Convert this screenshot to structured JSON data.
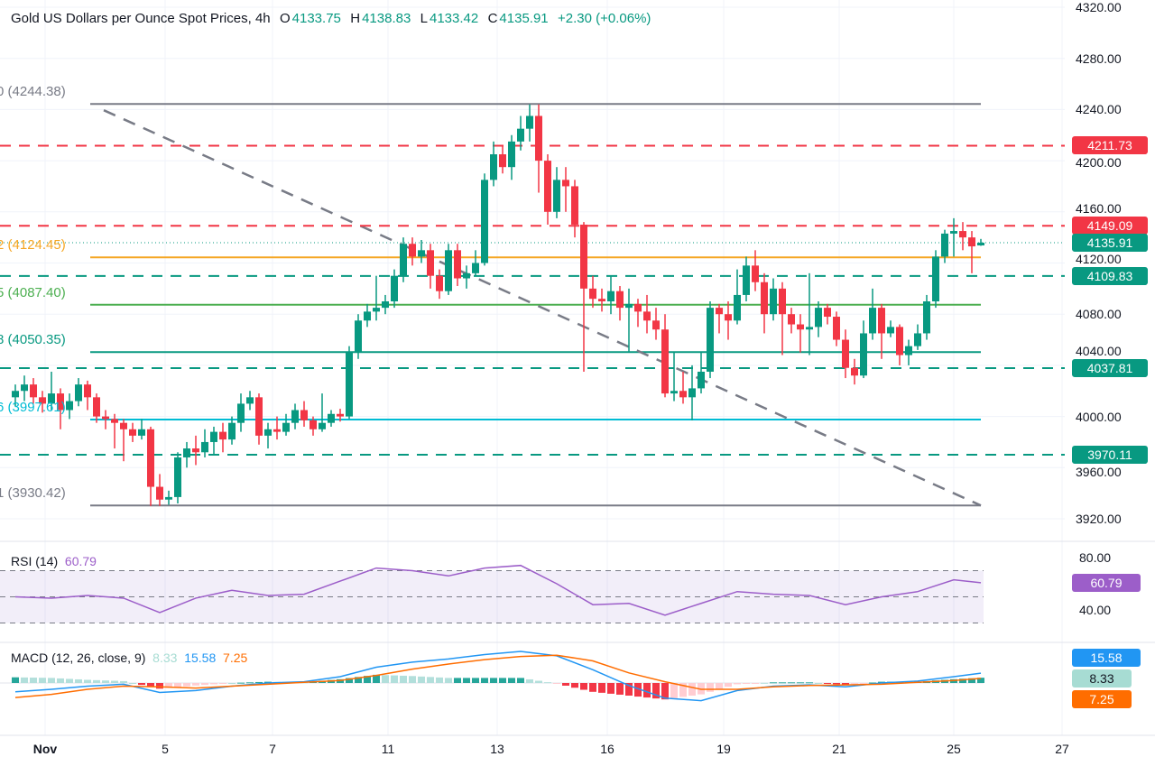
{
  "header": {
    "title": "Gold US Dollars per Ounce Spot Prices, 4h",
    "o_label": "O",
    "open": "4133.75",
    "h_label": "H",
    "high": "4138.83",
    "l_label": "L",
    "low": "4133.42",
    "c_label": "C",
    "close": "4135.91",
    "change": "+2.30 (+0.06%)"
  },
  "colors": {
    "up": "#089981",
    "down": "#f23645",
    "rsi": "#9c5ec9",
    "macd": "#2196f3",
    "signal": "#ff6d00",
    "hist_up_strong": "#26a69a",
    "hist_up_weak": "#b2dfdb",
    "hist_down_strong": "#f23645",
    "hist_down_weak": "#ffcdd2"
  },
  "price_axis": [
    "4320.00",
    "4280.00",
    "4240.00",
    "4200.00",
    "4160.00",
    "4120.00",
    "4080.00",
    "4040.00",
    "4000.00",
    "3960.00",
    "3920.00"
  ],
  "time_axis": [
    "Nov",
    "5",
    "7",
    "11",
    "13",
    "16",
    "19",
    "21",
    "25",
    "27"
  ],
  "fib_labels": [
    {
      "text": "0 (4244.38)",
      "value": 4244.38,
      "color": "#787b86"
    },
    {
      "text": "2 (4124.45)",
      "value": 4124.45,
      "color": "#f5a623"
    },
    {
      "text": "5 (4087.40)",
      "value": 4087.4,
      "color": "#4caf50"
    },
    {
      "text": "8 (4050.35)",
      "value": 4050.35,
      "color": "#089981"
    },
    {
      "text": "6 (3997.61)",
      "value": 3997.61,
      "color": "#00bcd4"
    },
    {
      "text": "1 (3930.42)",
      "value": 3930.42,
      "color": "#787b86"
    }
  ],
  "levels": [
    {
      "label": "4211.73",
      "value": 4211.73,
      "color": "#f23645",
      "style": "dashed"
    },
    {
      "label": "4149.09",
      "value": 4149.09,
      "color": "#f23645",
      "style": "dashed"
    },
    {
      "label": "4135.91",
      "value": 4135.91,
      "color": "#089981",
      "style": "dotted"
    },
    {
      "label": "4109.83",
      "value": 4109.83,
      "color": "#089981",
      "style": "dashed"
    },
    {
      "label": "4037.81",
      "value": 4037.81,
      "color": "#089981",
      "style": "dashed"
    },
    {
      "label": "3970.11",
      "value": 3970.11,
      "color": "#089981",
      "style": "dashed"
    }
  ],
  "trendline": {
    "from": 4244.38,
    "to": 3930.42,
    "color": "#787b86",
    "style": "dashed"
  },
  "rsi": {
    "label": "RSI (14)",
    "value": "60.79",
    "axis": [
      "80.00",
      "40.00"
    ],
    "upper": 70,
    "middle": 50,
    "lower": 30,
    "series": [
      50,
      49,
      51,
      49,
      38,
      49,
      55,
      51,
      52,
      62,
      72,
      70,
      66,
      72,
      74,
      60,
      44,
      45,
      36,
      45,
      54,
      52,
      51,
      44,
      50,
      54,
      63,
      60.79
    ]
  },
  "macd": {
    "label": "MACD (12, 26, close, 9)",
    "histogram_value": "8.33",
    "macd_value": "15.58",
    "signal_value": "7.25",
    "macd_series": [
      -14,
      -10,
      -5,
      -2,
      -15,
      -12,
      -5,
      0,
      2,
      10,
      25,
      33,
      38,
      45,
      50,
      43,
      21,
      -4,
      -24,
      -28,
      -12,
      -5,
      -3,
      -6,
      0,
      3,
      10,
      15.58
    ],
    "signal_series": [
      -23,
      -18,
      -10,
      -5,
      -6,
      -8,
      -5,
      -2,
      1,
      4,
      12,
      22,
      30,
      37,
      42,
      44,
      35,
      16,
      2,
      -10,
      -10,
      -6,
      -4,
      -3,
      -2,
      1,
      4,
      7.25
    ]
  },
  "chart_data": {
    "type": "candlestick",
    "title": "Gold US Dollars per Ounce Spot Prices, 4h",
    "ylim": [
      3920,
      4320
    ],
    "grid": true,
    "ohlc": [
      [
        4015,
        4025,
        4008,
        4020
      ],
      [
        4020,
        4032,
        4012,
        4025
      ],
      [
        4025,
        4030,
        4010,
        4015
      ],
      [
        4015,
        4020,
        4003,
        4010
      ],
      [
        4010,
        4035,
        4005,
        4018
      ],
      [
        4018,
        4022,
        3990,
        4005
      ],
      [
        4005,
        4018,
        3998,
        4012
      ],
      [
        4012,
        4030,
        4008,
        4025
      ],
      [
        4025,
        4028,
        4005,
        4015
      ],
      [
        4015,
        4018,
        3995,
        4000
      ],
      [
        4000,
        4005,
        3990,
        3998
      ],
      [
        3998,
        4002,
        3975,
        3995
      ],
      [
        3995,
        3998,
        3965,
        3990
      ],
      [
        3990,
        3995,
        3980,
        3985
      ],
      [
        3985,
        3998,
        3982,
        3990
      ],
      [
        3990,
        3992,
        3930,
        3945
      ],
      [
        3945,
        3955,
        3930,
        3935
      ],
      [
        3935,
        3942,
        3931,
        3937
      ],
      [
        3937,
        3972,
        3932,
        3968
      ],
      [
        3968,
        3980,
        3960,
        3975
      ],
      [
        3975,
        3985,
        3962,
        3972
      ],
      [
        3972,
        3990,
        3968,
        3980
      ],
      [
        3980,
        3992,
        3970,
        3988
      ],
      [
        3988,
        3995,
        3972,
        3982
      ],
      [
        3982,
        4000,
        3978,
        3995
      ],
      [
        3995,
        4018,
        3988,
        4010
      ],
      [
        4010,
        4020,
        4005,
        4015
      ],
      [
        4015,
        4018,
        3978,
        3985
      ],
      [
        3985,
        3995,
        3975,
        3990
      ],
      [
        3990,
        4000,
        3982,
        3988
      ],
      [
        3988,
        4002,
        3985,
        3995
      ],
      [
        3995,
        4010,
        3990,
        4005
      ],
      [
        4005,
        4012,
        3992,
        3997
      ],
      [
        3997,
        4000,
        3985,
        3990
      ],
      [
        3990,
        4018,
        3988,
        3995
      ],
      [
        3995,
        4005,
        3992,
        4002
      ],
      [
        4002,
        4006,
        3996,
        4000
      ],
      [
        4000,
        4055,
        3998,
        4050
      ],
      [
        4050,
        4080,
        4045,
        4075
      ],
      [
        4075,
        4088,
        4070,
        4082
      ],
      [
        4082,
        4110,
        4075,
        4085
      ],
      [
        4085,
        4095,
        4080,
        4090
      ],
      [
        4090,
        4115,
        4085,
        4110
      ],
      [
        4110,
        4140,
        4105,
        4135
      ],
      [
        4135,
        4140,
        4118,
        4125
      ],
      [
        4125,
        4138,
        4120,
        4130
      ],
      [
        4130,
        4135,
        4100,
        4110
      ],
      [
        4110,
        4115,
        4092,
        4098
      ],
      [
        4098,
        4135,
        4095,
        4130
      ],
      [
        4130,
        4135,
        4102,
        4108
      ],
      [
        4108,
        4118,
        4100,
        4112
      ],
      [
        4112,
        4130,
        4110,
        4120
      ],
      [
        4120,
        4190,
        4118,
        4185
      ],
      [
        4185,
        4215,
        4180,
        4205
      ],
      [
        4205,
        4212,
        4190,
        4195
      ],
      [
        4195,
        4220,
        4185,
        4215
      ],
      [
        4215,
        4235,
        4208,
        4225
      ],
      [
        4225,
        4244,
        4215,
        4235
      ],
      [
        4235,
        4244,
        4175,
        4200
      ],
      [
        4200,
        4205,
        4150,
        4160
      ],
      [
        4160,
        4195,
        4155,
        4185
      ],
      [
        4185,
        4195,
        4160,
        4180
      ],
      [
        4180,
        4185,
        4140,
        4150
      ],
      [
        4150,
        4152,
        4035,
        4100
      ],
      [
        4100,
        4110,
        4085,
        4092
      ],
      [
        4092,
        4100,
        4082,
        4090
      ],
      [
        4090,
        4110,
        4080,
        4098
      ],
      [
        4098,
        4102,
        4075,
        4085
      ],
      [
        4085,
        4100,
        4050,
        4088
      ],
      [
        4088,
        4092,
        4070,
        4082
      ],
      [
        4082,
        4095,
        4065,
        4075
      ],
      [
        4075,
        4085,
        4060,
        4068
      ],
      [
        4068,
        4080,
        4015,
        4018
      ],
      [
        4018,
        4050,
        4012,
        4020
      ],
      [
        4020,
        4035,
        4010,
        4015
      ],
      [
        4015,
        4040,
        3997,
        4022
      ],
      [
        4022,
        4050,
        4018,
        4035
      ],
      [
        4035,
        4090,
        4030,
        4085
      ],
      [
        4085,
        4088,
        4065,
        4080
      ],
      [
        4080,
        4090,
        4060,
        4075
      ],
      [
        4075,
        4115,
        4072,
        4095
      ],
      [
        4095,
        4125,
        4090,
        4118
      ],
      [
        4118,
        4130,
        4098,
        4105
      ],
      [
        4105,
        4112,
        4065,
        4080
      ],
      [
        4080,
        4108,
        4075,
        4100
      ],
      [
        4100,
        4105,
        4048,
        4080
      ],
      [
        4080,
        4085,
        4065,
        4072
      ],
      [
        4072,
        4080,
        4050,
        4068
      ],
      [
        4068,
        4112,
        4048,
        4070
      ],
      [
        4070,
        4090,
        4062,
        4085
      ],
      [
        4085,
        4088,
        4072,
        4078
      ],
      [
        4078,
        4082,
        4055,
        4060
      ],
      [
        4060,
        4068,
        4030,
        4038
      ],
      [
        4038,
        4045,
        4025,
        4032
      ],
      [
        4032,
        4075,
        4030,
        4065
      ],
      [
        4065,
        4100,
        4060,
        4085
      ],
      [
        4085,
        4088,
        4045,
        4065
      ],
      [
        4065,
        4075,
        4062,
        4070
      ],
      [
        4070,
        4072,
        4040,
        4048
      ],
      [
        4048,
        4060,
        4040,
        4055
      ],
      [
        4055,
        4072,
        4052,
        4065
      ],
      [
        4065,
        4095,
        4060,
        4090
      ],
      [
        4090,
        4130,
        4085,
        4125
      ],
      [
        4125,
        4146,
        4120,
        4143
      ],
      [
        4143,
        4155,
        4125,
        4145
      ],
      [
        4145,
        4152,
        4130,
        4140
      ],
      [
        4140,
        4145,
        4112,
        4133
      ],
      [
        4133.75,
        4138.83,
        4133.42,
        4135.91
      ]
    ]
  }
}
